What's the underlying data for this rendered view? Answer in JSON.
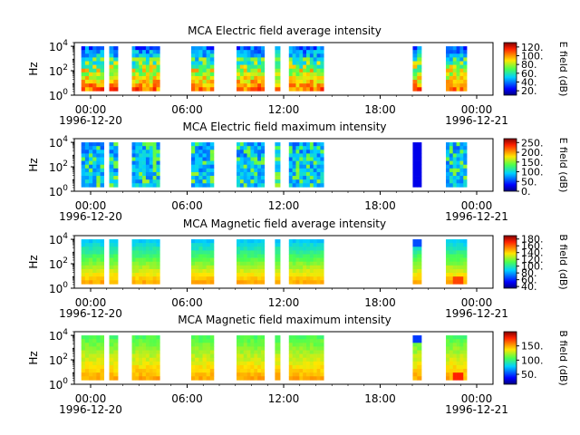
{
  "chart_data": [
    {
      "type": "heatmap",
      "title": "MCA  Electric field average intensity",
      "ylabel": "Hz",
      "y_scale": "log",
      "ylim": [
        1,
        20000
      ],
      "y_ticks": [
        {
          "base": "10",
          "exp": "0"
        },
        {
          "base": "10",
          "exp": "2"
        },
        {
          "base": "10",
          "exp": "4"
        }
      ],
      "xlim": [
        "1996-12-20 00:00",
        "1996-12-21 00:00"
      ],
      "x_ticks": [
        "00:00",
        "06:00",
        "12:00",
        "18:00",
        "00:00"
      ],
      "x_dates": [
        "1996-12-20",
        "1996-12-21"
      ],
      "colorbar": {
        "label": "E field (dB)",
        "range": [
          10,
          130
        ],
        "ticks": [
          "20.",
          "40.",
          "60.",
          "80.",
          "100.",
          "120."
        ]
      },
      "data_intervals_hours": [
        [
          0.4,
          1.7
        ],
        [
          2.0,
          2.5
        ],
        [
          3.3,
          4.9
        ],
        [
          6.7,
          8.0
        ],
        [
          9.3,
          10.9
        ],
        [
          11.5,
          11.8
        ],
        [
          12.3,
          14.3
        ],
        [
          19.4,
          19.9
        ],
        [
          21.3,
          22.5
        ]
      ],
      "intensity_profile": "low frequencies strongest (yellow-red), mid green, high frequencies cyan-blue"
    },
    {
      "type": "heatmap",
      "title": "MCA  Electric field maximum intensity",
      "ylabel": "Hz",
      "y_scale": "log",
      "ylim": [
        1,
        20000
      ],
      "y_ticks": [
        {
          "base": "10",
          "exp": "0"
        },
        {
          "base": "10",
          "exp": "2"
        },
        {
          "base": "10",
          "exp": "4"
        }
      ],
      "xlim": [
        "1996-12-20 00:00",
        "1996-12-21 00:00"
      ],
      "x_ticks": [
        "00:00",
        "06:00",
        "12:00",
        "18:00",
        "00:00"
      ],
      "x_dates": [
        "1996-12-20",
        "1996-12-21"
      ],
      "colorbar": {
        "label": "E field (dB)",
        "range": [
          0,
          270
        ],
        "ticks": [
          "0.",
          "50.",
          "100.",
          "150.",
          "200.",
          "250."
        ]
      },
      "data_intervals_hours": [
        [
          0.4,
          1.7
        ],
        [
          2.0,
          2.5
        ],
        [
          3.3,
          4.9
        ],
        [
          6.7,
          8.0
        ],
        [
          9.3,
          10.9
        ],
        [
          11.5,
          11.8
        ],
        [
          12.3,
          14.3
        ],
        [
          19.4,
          19.9
        ],
        [
          21.3,
          22.5
        ]
      ],
      "intensity_profile": "mostly cyan-blue, green patches, deep blue stripe near 19:45"
    },
    {
      "type": "heatmap",
      "title": "MCA  Magnetic field average intensity",
      "ylabel": "Hz",
      "y_scale": "log",
      "ylim": [
        1,
        20000
      ],
      "y_ticks": [
        {
          "base": "10",
          "exp": "0"
        },
        {
          "base": "10",
          "exp": "2"
        },
        {
          "base": "10",
          "exp": "4"
        }
      ],
      "xlim": [
        "1996-12-20 00:00",
        "1996-12-21 00:00"
      ],
      "x_ticks": [
        "00:00",
        "06:00",
        "12:00",
        "18:00",
        "00:00"
      ],
      "x_dates": [
        "1996-12-20",
        "1996-12-21"
      ],
      "colorbar": {
        "label": "B field (dB)",
        "range": [
          35,
          190
        ],
        "ticks": [
          "40.",
          "60.",
          "80.",
          "100.",
          "120.",
          "140.",
          "160.",
          "180."
        ]
      },
      "data_intervals_hours": [
        [
          0.4,
          1.7
        ],
        [
          2.0,
          2.5
        ],
        [
          3.3,
          4.9
        ],
        [
          6.7,
          8.0
        ],
        [
          9.3,
          10.9
        ],
        [
          11.5,
          11.8
        ],
        [
          12.3,
          14.3
        ],
        [
          19.4,
          19.9
        ],
        [
          21.3,
          22.5
        ]
      ],
      "intensity_profile": "bands: yellow-orange at bottom, green middle, cyan-blue top"
    },
    {
      "type": "heatmap",
      "title": "MCA  Magnetic field maximum intensity",
      "ylabel": "Hz",
      "y_scale": "log",
      "ylim": [
        1,
        20000
      ],
      "y_ticks": [
        {
          "base": "10",
          "exp": "0"
        },
        {
          "base": "10",
          "exp": "2"
        },
        {
          "base": "10",
          "exp": "4"
        }
      ],
      "xlim": [
        "1996-12-20 00:00",
        "1996-12-21 00:00"
      ],
      "x_ticks": [
        "00:00",
        "06:00",
        "12:00",
        "18:00",
        "00:00"
      ],
      "x_dates": [
        "1996-12-20",
        "1996-12-21"
      ],
      "colorbar": {
        "label": "B field (dB)",
        "range": [
          15,
          200
        ],
        "ticks": [
          "50.",
          "100.",
          "150."
        ]
      },
      "data_intervals_hours": [
        [
          0.4,
          1.7
        ],
        [
          2.0,
          2.5
        ],
        [
          3.3,
          4.9
        ],
        [
          6.7,
          8.0
        ],
        [
          9.3,
          10.9
        ],
        [
          11.5,
          11.8
        ],
        [
          12.3,
          14.3
        ],
        [
          19.4,
          19.9
        ],
        [
          21.3,
          22.5
        ]
      ],
      "intensity_profile": "bands: yellow-red at bottom, green middle and top"
    }
  ]
}
